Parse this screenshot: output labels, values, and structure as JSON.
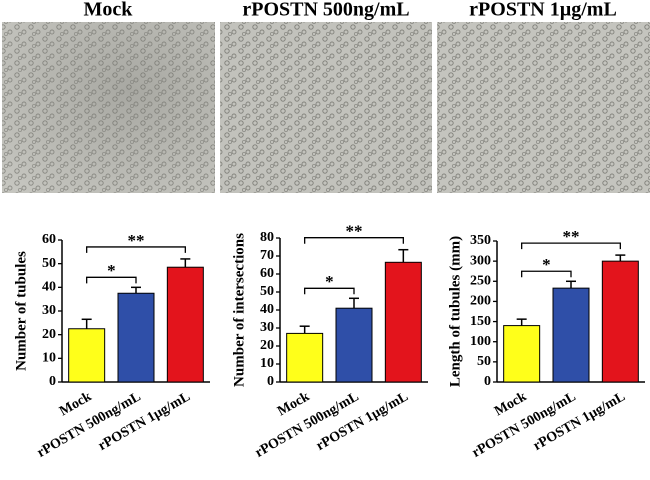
{
  "panels": [
    "Mock",
    "rPOSTN 500ng/mL",
    "rPOSTN 1µg/mL"
  ],
  "chart_data": [
    {
      "type": "bar",
      "ylabel": "Number of tubules",
      "categories": [
        "Mock",
        "rPOSTN 500ng/mL",
        "rPOSTN 1µg/mL"
      ],
      "values": [
        22.5,
        37.5,
        48.5
      ],
      "errors": [
        4,
        2.5,
        3.5
      ],
      "colors": [
        "#ffff1a",
        "#2f4fa8",
        "#e3141c"
      ],
      "ylim": [
        0,
        60
      ],
      "yticks": [
        0,
        10,
        20,
        30,
        40,
        50,
        60
      ],
      "annotations": [
        {
          "text": "*",
          "from": 0,
          "to": 1
        },
        {
          "text": "**",
          "from": 0,
          "to": 2
        }
      ]
    },
    {
      "type": "bar",
      "ylabel": "Number of intersections",
      "categories": [
        "Mock",
        "rPOSTN 500ng/mL",
        "rPOSTN 1µg/mL"
      ],
      "values": [
        27,
        41,
        66.5
      ],
      "errors": [
        4,
        5.5,
        7
      ],
      "colors": [
        "#ffff1a",
        "#2f4fa8",
        "#e3141c"
      ],
      "ylim": [
        0,
        80
      ],
      "yticks": [
        0,
        10,
        20,
        30,
        40,
        50,
        60,
        70,
        80
      ],
      "annotations": [
        {
          "text": "*",
          "from": 0,
          "to": 1
        },
        {
          "text": "**",
          "from": 0,
          "to": 2
        }
      ]
    },
    {
      "type": "bar",
      "ylabel": "Length of tubules (mm)",
      "categories": [
        "Mock",
        "rPOSTN 500ng/mL",
        "rPOSTN 1µg/mL"
      ],
      "values": [
        140,
        233,
        300
      ],
      "errors": [
        16,
        17,
        15
      ],
      "colors": [
        "#ffff1a",
        "#2f4fa8",
        "#e3141c"
      ],
      "ylim": [
        0,
        350
      ],
      "yticks": [
        0,
        50,
        100,
        150,
        200,
        250,
        300,
        350
      ],
      "annotations": [
        {
          "text": "*",
          "from": 0,
          "to": 1
        },
        {
          "text": "**",
          "from": 0,
          "to": 2
        }
      ]
    }
  ]
}
